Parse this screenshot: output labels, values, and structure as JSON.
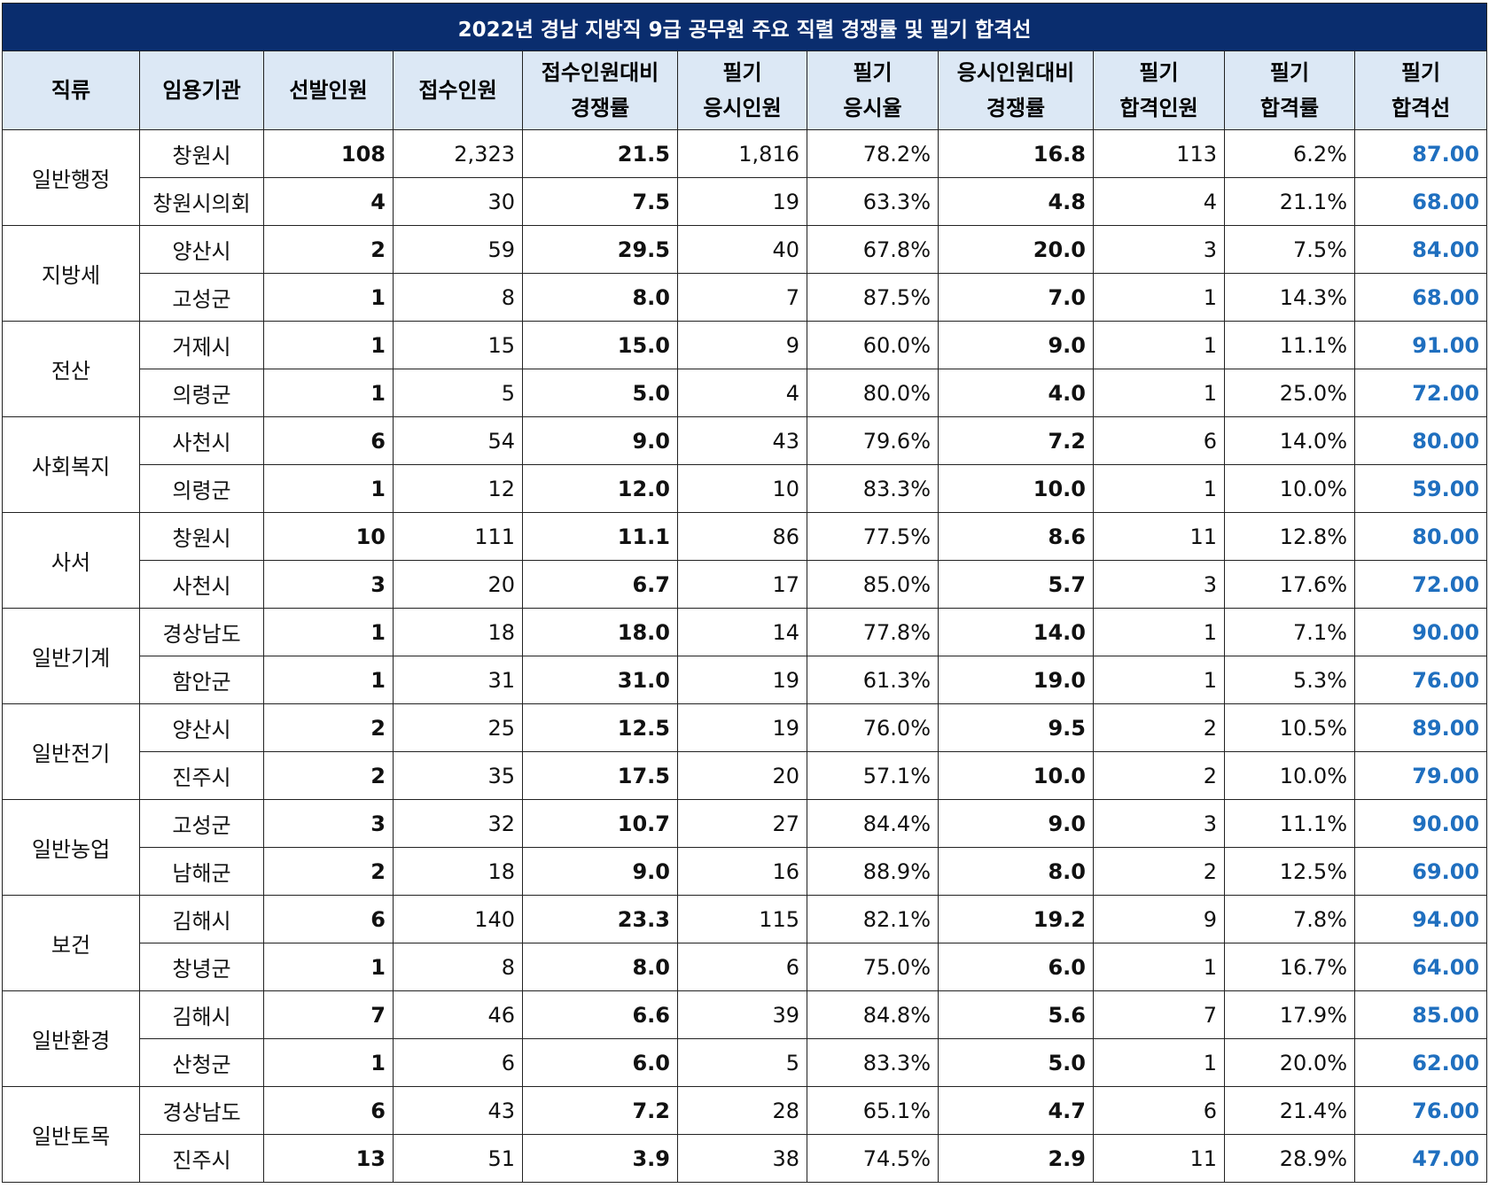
{
  "title": "2022년 경남 지방직 9급 공무원 주요 직렬 경쟁률 및 필기 합격선",
  "headers": [
    [
      "직류"
    ],
    [
      "임용기관"
    ],
    [
      "선발인원"
    ],
    [
      "접수인원"
    ],
    [
      "접수인원대비",
      "경쟁률"
    ],
    [
      "필기",
      "응시인원"
    ],
    [
      "필기",
      "응시율"
    ],
    [
      "응시인원대비",
      "경쟁률"
    ],
    [
      "필기",
      "합격인원"
    ],
    [
      "필기",
      "합격률"
    ],
    [
      "필기",
      "합격선"
    ]
  ],
  "groups": [
    {
      "job": "일반행정",
      "rows": [
        {
          "org": "창원시",
          "select": "108",
          "apply": "2,323",
          "apply_ratio": "21.5",
          "exam_count": "1,816",
          "exam_rate": "78.2%",
          "exam_ratio": "16.8",
          "pass_count": "113",
          "pass_rate": "6.2%",
          "cutoff": "87.00"
        },
        {
          "org": "창원시의회",
          "select": "4",
          "apply": "30",
          "apply_ratio": "7.5",
          "exam_count": "19",
          "exam_rate": "63.3%",
          "exam_ratio": "4.8",
          "pass_count": "4",
          "pass_rate": "21.1%",
          "cutoff": "68.00"
        }
      ]
    },
    {
      "job": "지방세",
      "rows": [
        {
          "org": "양산시",
          "select": "2",
          "apply": "59",
          "apply_ratio": "29.5",
          "exam_count": "40",
          "exam_rate": "67.8%",
          "exam_ratio": "20.0",
          "pass_count": "3",
          "pass_rate": "7.5%",
          "cutoff": "84.00"
        },
        {
          "org": "고성군",
          "select": "1",
          "apply": "8",
          "apply_ratio": "8.0",
          "exam_count": "7",
          "exam_rate": "87.5%",
          "exam_ratio": "7.0",
          "pass_count": "1",
          "pass_rate": "14.3%",
          "cutoff": "68.00"
        }
      ]
    },
    {
      "job": "전산",
      "rows": [
        {
          "org": "거제시",
          "select": "1",
          "apply": "15",
          "apply_ratio": "15.0",
          "exam_count": "9",
          "exam_rate": "60.0%",
          "exam_ratio": "9.0",
          "pass_count": "1",
          "pass_rate": "11.1%",
          "cutoff": "91.00"
        },
        {
          "org": "의령군",
          "select": "1",
          "apply": "5",
          "apply_ratio": "5.0",
          "exam_count": "4",
          "exam_rate": "80.0%",
          "exam_ratio": "4.0",
          "pass_count": "1",
          "pass_rate": "25.0%",
          "cutoff": "72.00"
        }
      ]
    },
    {
      "job": "사회복지",
      "rows": [
        {
          "org": "사천시",
          "select": "6",
          "apply": "54",
          "apply_ratio": "9.0",
          "exam_count": "43",
          "exam_rate": "79.6%",
          "exam_ratio": "7.2",
          "pass_count": "6",
          "pass_rate": "14.0%",
          "cutoff": "80.00"
        },
        {
          "org": "의령군",
          "select": "1",
          "apply": "12",
          "apply_ratio": "12.0",
          "exam_count": "10",
          "exam_rate": "83.3%",
          "exam_ratio": "10.0",
          "pass_count": "1",
          "pass_rate": "10.0%",
          "cutoff": "59.00"
        }
      ]
    },
    {
      "job": "사서",
      "rows": [
        {
          "org": "창원시",
          "select": "10",
          "apply": "111",
          "apply_ratio": "11.1",
          "exam_count": "86",
          "exam_rate": "77.5%",
          "exam_ratio": "8.6",
          "pass_count": "11",
          "pass_rate": "12.8%",
          "cutoff": "80.00"
        },
        {
          "org": "사천시",
          "select": "3",
          "apply": "20",
          "apply_ratio": "6.7",
          "exam_count": "17",
          "exam_rate": "85.0%",
          "exam_ratio": "5.7",
          "pass_count": "3",
          "pass_rate": "17.6%",
          "cutoff": "72.00"
        }
      ]
    },
    {
      "job": "일반기계",
      "rows": [
        {
          "org": "경상남도",
          "select": "1",
          "apply": "18",
          "apply_ratio": "18.0",
          "exam_count": "14",
          "exam_rate": "77.8%",
          "exam_ratio": "14.0",
          "pass_count": "1",
          "pass_rate": "7.1%",
          "cutoff": "90.00"
        },
        {
          "org": "함안군",
          "select": "1",
          "apply": "31",
          "apply_ratio": "31.0",
          "exam_count": "19",
          "exam_rate": "61.3%",
          "exam_ratio": "19.0",
          "pass_count": "1",
          "pass_rate": "5.3%",
          "cutoff": "76.00"
        }
      ]
    },
    {
      "job": "일반전기",
      "rows": [
        {
          "org": "양산시",
          "select": "2",
          "apply": "25",
          "apply_ratio": "12.5",
          "exam_count": "19",
          "exam_rate": "76.0%",
          "exam_ratio": "9.5",
          "pass_count": "2",
          "pass_rate": "10.5%",
          "cutoff": "89.00"
        },
        {
          "org": "진주시",
          "select": "2",
          "apply": "35",
          "apply_ratio": "17.5",
          "exam_count": "20",
          "exam_rate": "57.1%",
          "exam_ratio": "10.0",
          "pass_count": "2",
          "pass_rate": "10.0%",
          "cutoff": "79.00"
        }
      ]
    },
    {
      "job": "일반농업",
      "rows": [
        {
          "org": "고성군",
          "select": "3",
          "apply": "32",
          "apply_ratio": "10.7",
          "exam_count": "27",
          "exam_rate": "84.4%",
          "exam_ratio": "9.0",
          "pass_count": "3",
          "pass_rate": "11.1%",
          "cutoff": "90.00"
        },
        {
          "org": "남해군",
          "select": "2",
          "apply": "18",
          "apply_ratio": "9.0",
          "exam_count": "16",
          "exam_rate": "88.9%",
          "exam_ratio": "8.0",
          "pass_count": "2",
          "pass_rate": "12.5%",
          "cutoff": "69.00"
        }
      ]
    },
    {
      "job": "보건",
      "rows": [
        {
          "org": "김해시",
          "select": "6",
          "apply": "140",
          "apply_ratio": "23.3",
          "exam_count": "115",
          "exam_rate": "82.1%",
          "exam_ratio": "19.2",
          "pass_count": "9",
          "pass_rate": "7.8%",
          "cutoff": "94.00"
        },
        {
          "org": "창녕군",
          "select": "1",
          "apply": "8",
          "apply_ratio": "8.0",
          "exam_count": "6",
          "exam_rate": "75.0%",
          "exam_ratio": "6.0",
          "pass_count": "1",
          "pass_rate": "16.7%",
          "cutoff": "64.00"
        }
      ]
    },
    {
      "job": "일반환경",
      "rows": [
        {
          "org": "김해시",
          "select": "7",
          "apply": "46",
          "apply_ratio": "6.6",
          "exam_count": "39",
          "exam_rate": "84.8%",
          "exam_ratio": "5.6",
          "pass_count": "7",
          "pass_rate": "17.9%",
          "cutoff": "85.00"
        },
        {
          "org": "산청군",
          "select": "1",
          "apply": "6",
          "apply_ratio": "6.0",
          "exam_count": "5",
          "exam_rate": "83.3%",
          "exam_ratio": "5.0",
          "pass_count": "1",
          "pass_rate": "20.0%",
          "cutoff": "62.00"
        }
      ]
    },
    {
      "job": "일반토목",
      "rows": [
        {
          "org": "경상남도",
          "select": "6",
          "apply": "43",
          "apply_ratio": "7.2",
          "exam_count": "28",
          "exam_rate": "65.1%",
          "exam_ratio": "4.7",
          "pass_count": "6",
          "pass_rate": "21.4%",
          "cutoff": "76.00"
        },
        {
          "org": "진주시",
          "select": "13",
          "apply": "51",
          "apply_ratio": "3.9",
          "exam_count": "38",
          "exam_rate": "74.5%",
          "exam_ratio": "2.9",
          "pass_count": "11",
          "pass_rate": "28.9%",
          "cutoff": "47.00"
        }
      ]
    }
  ],
  "colors": {
    "title_bg": "#0a2d6e",
    "header_bg": "#dce8f5",
    "cutoff_text": "#1f6fbf"
  }
}
